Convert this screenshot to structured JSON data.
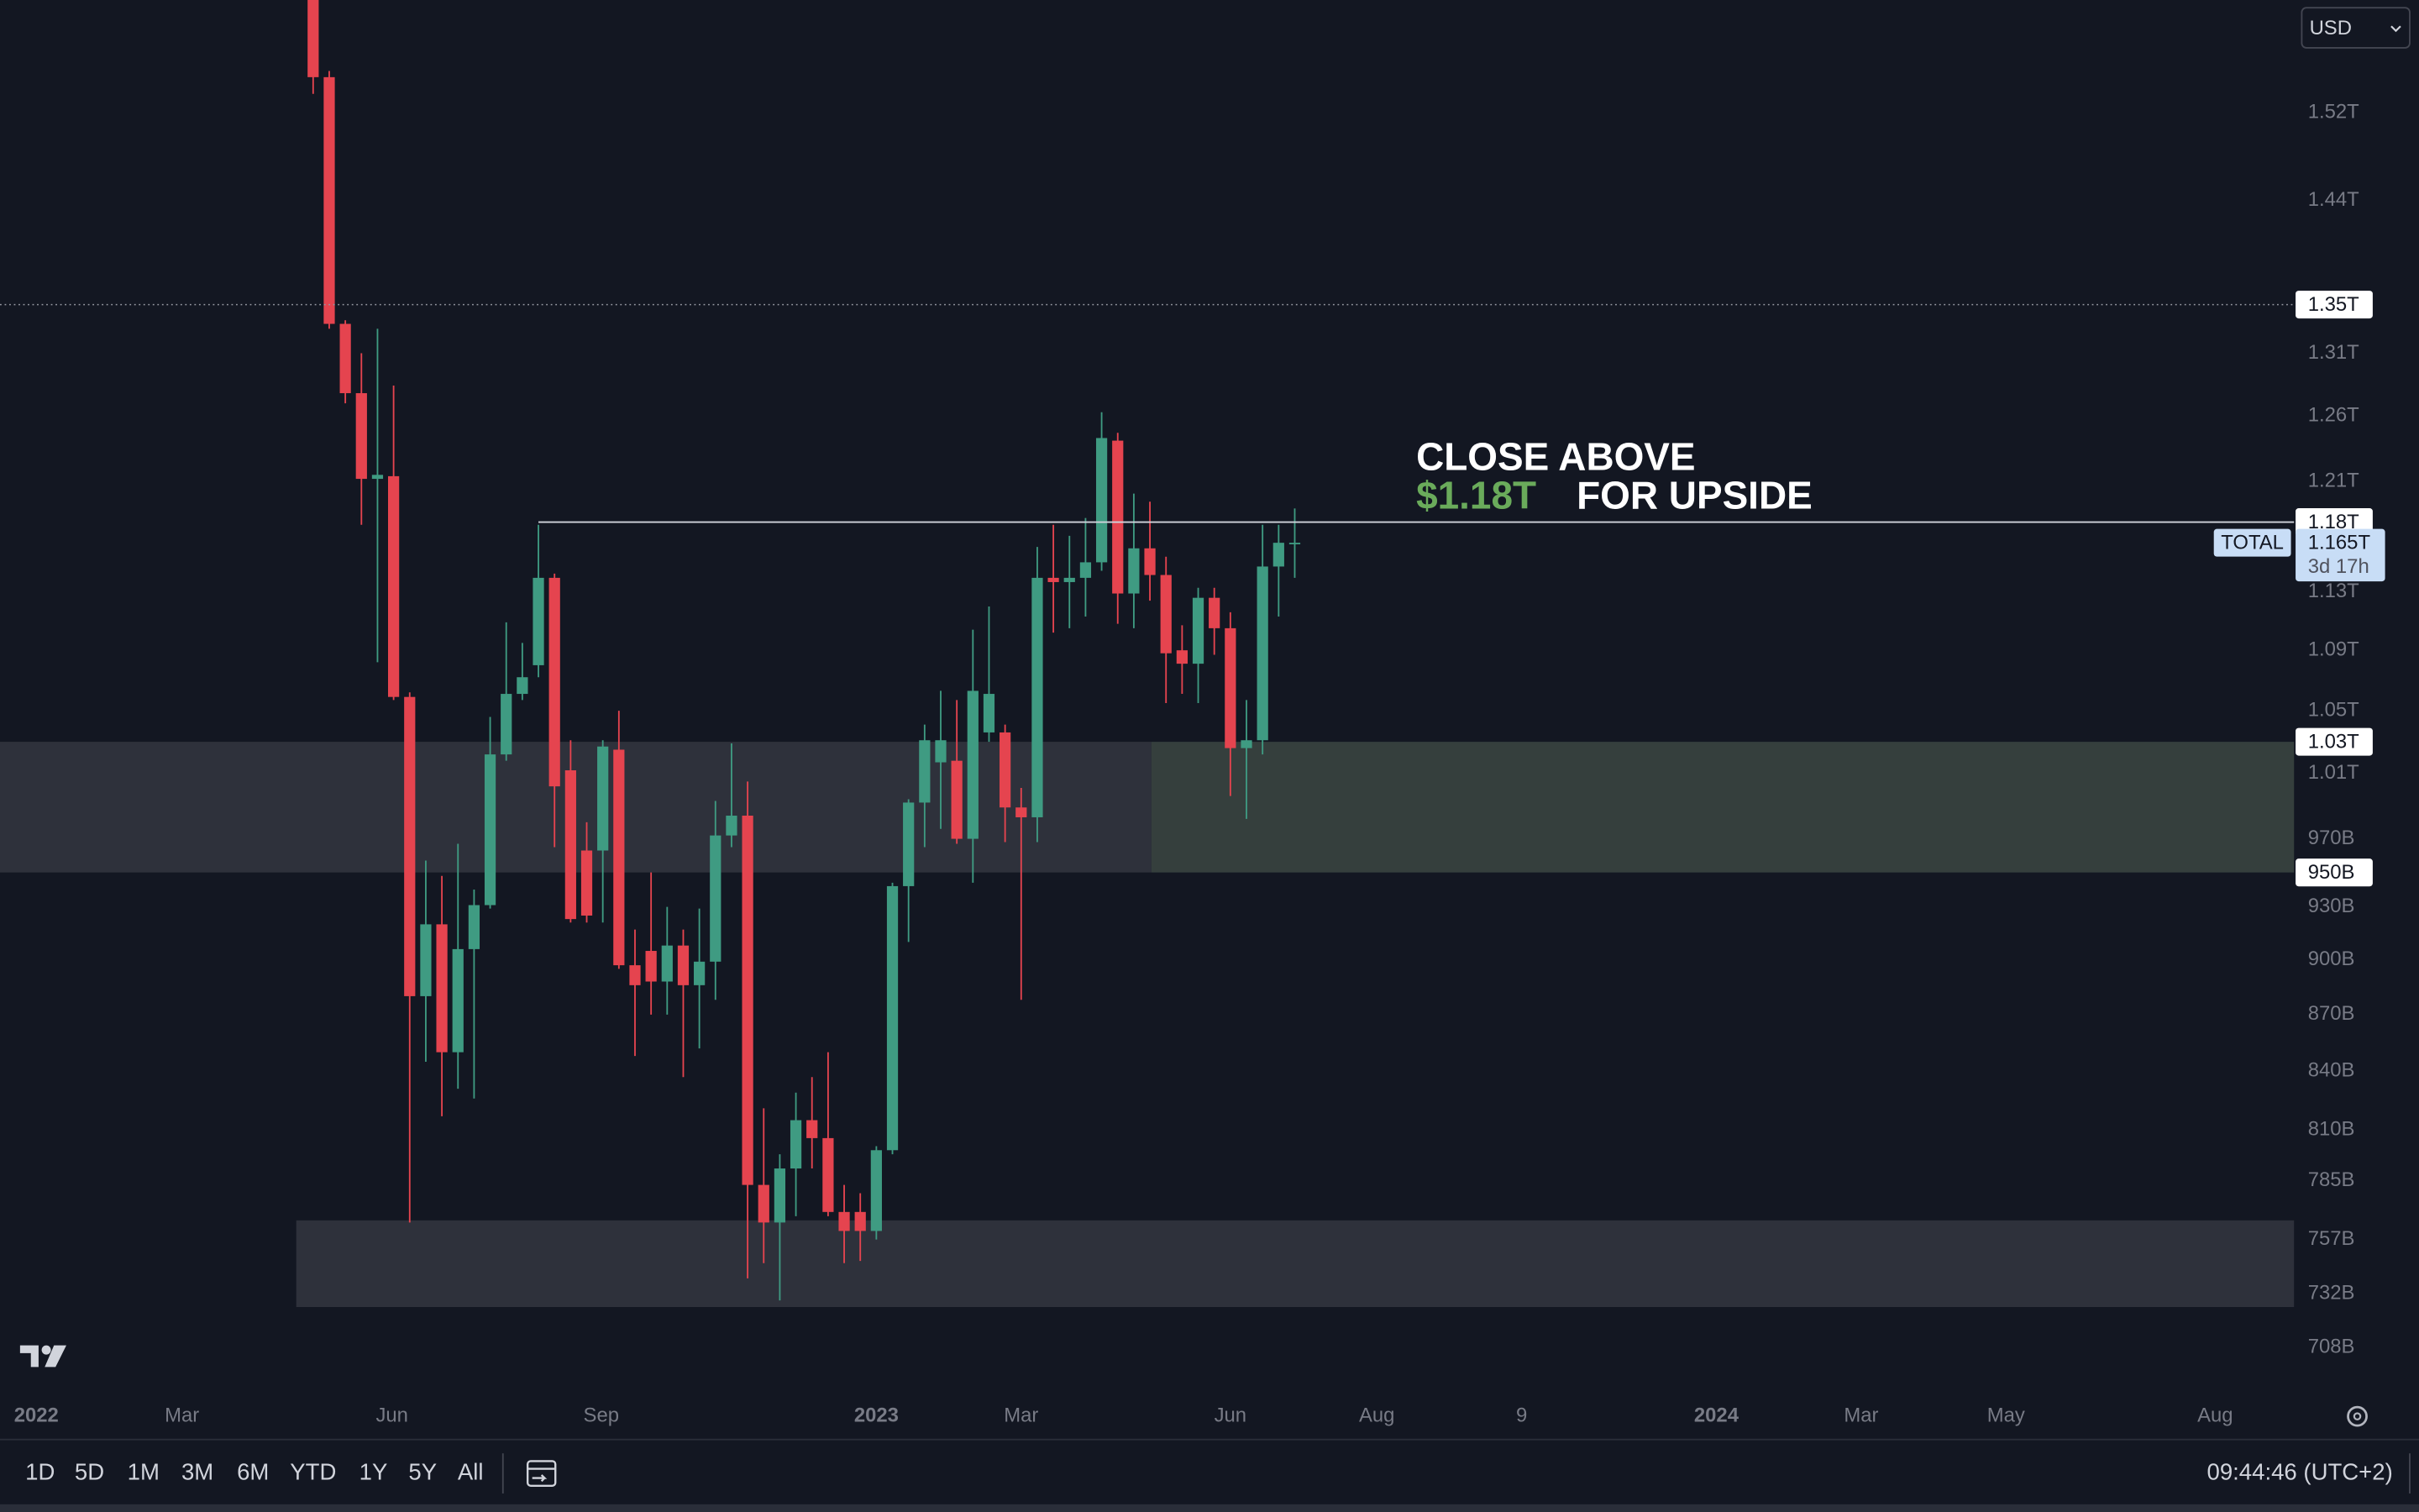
{
  "toolbar": {
    "currency": "USD",
    "ranges": [
      "1D",
      "5D",
      "1M",
      "3M",
      "6M",
      "YTD",
      "1Y",
      "5Y",
      "All"
    ],
    "time": "09:44:46 (UTC+2)"
  },
  "chart_data": {
    "type": "candlestick",
    "log_scale": true,
    "up_color": "#3f9b82",
    "down_color": "#e5444f",
    "categories": [
      null,
      null,
      null,
      null,
      null,
      null,
      null,
      null,
      null,
      null,
      null,
      null,
      null,
      null,
      null,
      null,
      null,
      null,
      null,
      null,
      null,
      null,
      null,
      null,
      null,
      null,
      null,
      null,
      null,
      null,
      null,
      null,
      null,
      null,
      null,
      null,
      null,
      null,
      null,
      null,
      null,
      null,
      null,
      null,
      null,
      null,
      null,
      null,
      null,
      null,
      null,
      null,
      null,
      null,
      null,
      null,
      null,
      null,
      null,
      null,
      null,
      null
    ],
    "open": [
      1660000000000.0,
      1554000000000.0,
      1334000000000.0,
      1278000000000.0,
      1212000000000.0,
      1214000000000.0,
      1059000000000.0,
      880000000000.0,
      920000000000.0,
      850000000000.0,
      906000000000.0,
      931000000000.0,
      1022000000000.0,
      1061000000000.0,
      1080000000000.0,
      1140000000000.0,
      1012000000000.0,
      963000000000.0,
      963000000000.0,
      1025000000000.0,
      897000000000.0,
      905000000000.0,
      888000000000.0,
      908000000000.0,
      886000000000.0,
      899000000000.0,
      972000000000.0,
      984000000000.0,
      783000000000.0,
      765000000000.0,
      791000000000.0,
      815000000000.0,
      806000000000.0,
      770000000000.0,
      770000000000.0,
      761000000000.0,
      800000000000.0,
      942000000000.0,
      992000000000.0,
      1017000000000.0,
      1018000000000.0,
      970000000000.0,
      1036000000000.0,
      1036000000000.0,
      989000000000.0,
      983000000000.0,
      1140000000000.0,
      1137000000000.0,
      1140000000000.0,
      1151000000000.0,
      1241000000000.0,
      1129000000000.0,
      1161000000000.0,
      1142000000000.0,
      1090000000000.0,
      1081000000000.0,
      1126000000000.0,
      1105000000000.0,
      1026000000000.0,
      1031000000000.0,
      1148000000000.0,
      1164000000000.0
    ],
    "high": [
      1680000000000.0,
      1560000000000.0,
      1337000000000.0,
      1310000000000.0,
      1330000000000.0,
      1284000000000.0,
      1062000000000.0,
      957000000000.0,
      948000000000.0,
      967000000000.0,
      940000000000.0,
      1046000000000.0,
      1109000000000.0,
      1095000000000.0,
      1178000000000.0,
      1143000000000.0,
      1031000000000.0,
      980000000000.0,
      1031000000000.0,
      1050000000000.0,
      917000000000.0,
      950000000000.0,
      930000000000.0,
      917000000000.0,
      929000000000.0,
      993000000000.0,
      1029000000000.0,
      1005000000000.0,
      821000000000.0,
      798000000000.0,
      829000000000.0,
      837000000000.0,
      850000000000.0,
      783000000000.0,
      779000000000.0,
      802000000000.0,
      944000000000.0,
      994000000000.0,
      1041000000000.0,
      1063000000000.0,
      1057000000000.0,
      1104000000000.0,
      1120000000000.0,
      1041000000000.0,
      1001000000000.0,
      1162000000000.0,
      1178000000000.0,
      1170000000000.0,
      1183000000000.0,
      1263000000000.0,
      1247000000000.0,
      1201000000000.0,
      1195000000000.0,
      1155000000000.0,
      1107000000000.0,
      1133000000000.0,
      1133000000000.0,
      1116000000000.0,
      1057000000000.0,
      1178000000000.0,
      1178000000000.0,
      1190000000000.0
    ],
    "low": [
      1538000000000.0,
      1330000000000.0,
      1270000000000.0,
      1178000000000.0,
      1082000000000.0,
      1057000000000.0,
      765000000000.0,
      845000000000.0,
      817000000000.0,
      831000000000.0,
      826000000000.0,
      929000000000.0,
      1018000000000.0,
      1057000000000.0,
      1072000000000.0,
      965000000000.0,
      921000000000.0,
      921000000000.0,
      921000000000.0,
      895000000000.0,
      848000000000.0,
      870000000000.0,
      870000000000.0,
      837000000000.0,
      852000000000.0,
      878000000000.0,
      965000000000.0,
      739000000000.0,
      746000000000.0,
      729000000000.0,
      768000000000.0,
      791000000000.0,
      768000000000.0,
      746000000000.0,
      747000000000.0,
      757000000000.0,
      798000000000.0,
      910000000000.0,
      965000000000.0,
      976000000000.0,
      967000000000.0,
      944000000000.0,
      1030000000000.0,
      968000000000.0,
      878000000000.0,
      968000000000.0,
      1102000000000.0,
      1105000000000.0,
      1113000000000.0,
      1145000000000.0,
      1108000000000.0,
      1105000000000.0,
      1124000000000.0,
      1055000000000.0,
      1061000000000.0,
      1055000000000.0,
      1087000000000.0,
      996000000000.0,
      982000000000.0,
      1022000000000.0,
      1113000000000.0,
      1140000000000.0
    ],
    "close": [
      1554000000000.0,
      1334000000000.0,
      1278000000000.0,
      1212000000000.0,
      1215000000000.0,
      1059000000000.0,
      880000000000.0,
      920000000000.0,
      850000000000.0,
      906000000000.0,
      931000000000.0,
      1022000000000.0,
      1061000000000.0,
      1072000000000.0,
      1140000000000.0,
      1002000000000.0,
      923000000000.0,
      925000000000.0,
      1027000000000.0,
      897000000000.0,
      886000000000.0,
      888000000000.0,
      908000000000.0,
      886000000000.0,
      899000000000.0,
      972000000000.0,
      984000000000.0,
      783000000000.0,
      765000000000.0,
      791000000000.0,
      815000000000.0,
      806000000000.0,
      770000000000.0,
      761000000000.0,
      761000000000.0,
      800000000000.0,
      942000000000.0,
      992000000000.0,
      1031000000000.0,
      1031000000000.0,
      970000000000.0,
      1063000000000.0,
      1061000000000.0,
      989000000000.0,
      983000000000.0,
      1140000000000.0,
      1137000000000.0,
      1140000000000.0,
      1151000000000.0,
      1243000000000.0,
      1129000000000.0,
      1161000000000.0,
      1142000000000.0,
      1088000000000.0,
      1081000000000.0,
      1126000000000.0,
      1105000000000.0,
      1026000000000.0,
      1031000000000.0,
      1148000000000.0,
      1165000000000.0,
      1165000000000.0
    ],
    "xlim": [
      -19.46,
      123.1
    ],
    "xticks": [
      {
        "value": -17.2,
        "label": "2022"
      },
      {
        "value": -8.15,
        "label": "Mar"
      },
      {
        "value": 4.9,
        "label": "Jun"
      },
      {
        "value": 17.9,
        "label": "Sep"
      },
      {
        "value": 35.0,
        "label": "2023"
      },
      {
        "value": 44.0,
        "label": "Mar"
      },
      {
        "value": 57.0,
        "label": "Jun"
      },
      {
        "value": 66.1,
        "label": "Aug"
      },
      {
        "value": 75.1,
        "label": "9"
      },
      {
        "value": 87.2,
        "label": "2024"
      },
      {
        "value": 96.2,
        "label": "Mar"
      },
      {
        "value": 105.2,
        "label": "May"
      },
      {
        "value": 118.2,
        "label": "Aug"
      }
    ],
    "ylim": [
      687000000000.0,
      1630000000000.0
    ],
    "yticks": [
      {
        "value": 1520000000000.0,
        "label": "1.52T"
      },
      {
        "value": 1440000000000.0,
        "label": "1.44T"
      },
      {
        "value": 1310000000000.0,
        "label": "1.31T"
      },
      {
        "value": 1260000000000.0,
        "label": "1.26T"
      },
      {
        "value": 1210000000000.0,
        "label": "1.21T"
      },
      {
        "value": 1130000000000.0,
        "label": "1.13T"
      },
      {
        "value": 1090000000000.0,
        "label": "1.09T"
      },
      {
        "value": 1050000000000.0,
        "label": "1.05T"
      },
      {
        "value": 1010000000000.0,
        "label": "1.01T"
      },
      {
        "value": 970000000000.0,
        "label": "970B"
      },
      {
        "value": 930000000000.0,
        "label": "930B"
      },
      {
        "value": 900000000000.0,
        "label": "900B"
      },
      {
        "value": 870000000000.0,
        "label": "870B"
      },
      {
        "value": 840000000000.0,
        "label": "840B"
      },
      {
        "value": 810000000000.0,
        "label": "810B"
      },
      {
        "value": 785000000000.0,
        "label": "785B"
      },
      {
        "value": 757000000000.0,
        "label": "757B"
      },
      {
        "value": 732000000000.0,
        "label": "732B"
      },
      {
        "value": 708000000000.0,
        "label": "708B"
      }
    ],
    "zones": [
      {
        "top": 1030000000000.0,
        "bottom": 950000000000.0,
        "start": -19.46,
        "end": 52.1,
        "color": "#2e313b"
      },
      {
        "top": 1030000000000.0,
        "bottom": 950000000000.0,
        "start": 52.1,
        "color": "#353f3d"
      },
      {
        "top": 766000000000.0,
        "bottom": 726000000000.0,
        "start": -1.05,
        "color": "#2e313b"
      }
    ],
    "levels": [
      {
        "value": 1350000000000.0,
        "label": "1.35T",
        "style": "dotted"
      },
      {
        "value": 1180000000000.0,
        "label": "1.18T",
        "style": "solid",
        "start": 14
      },
      {
        "value": 1030000000000.0,
        "label": "1.03T",
        "style": "none"
      },
      {
        "value": 950000000000.0,
        "label": "950B",
        "style": "none"
      }
    ],
    "last_price": {
      "symbol": "TOTAL",
      "value": 1165000000000.0,
      "label": "1.165T",
      "countdown": "3d 17h"
    },
    "annotation": {
      "line1": "CLOSE ABOVE",
      "price": "$1.18T",
      "line2": "FOR UPSIDE"
    }
  }
}
